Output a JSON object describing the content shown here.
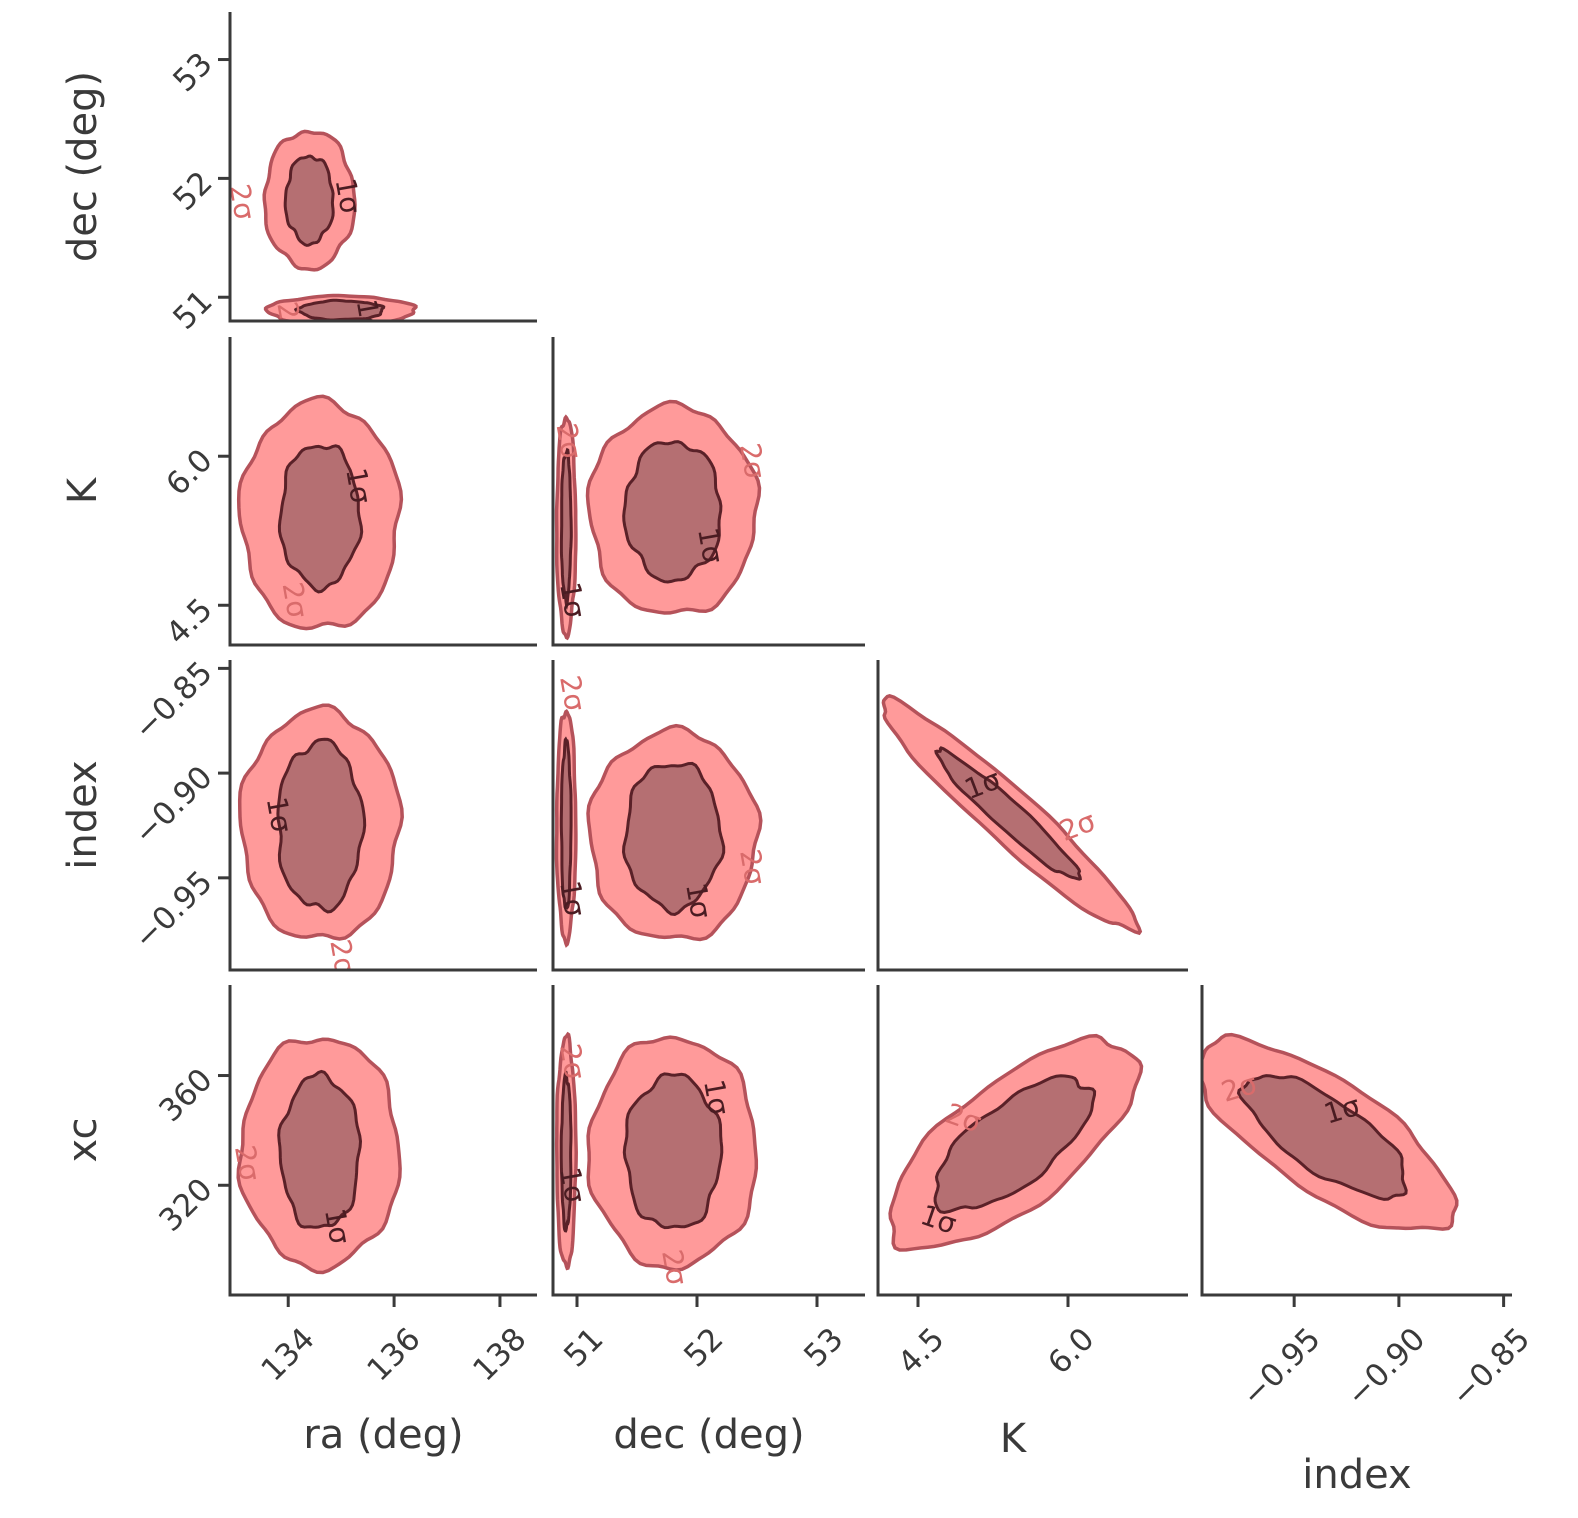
{
  "chart_data": {
    "type": "corner",
    "parameters": [
      {
        "id": "ra",
        "label": "ra (deg)",
        "range": [
          132.9,
          138.7
        ],
        "ticks": [
          "134",
          "136",
          "138"
        ],
        "tick_values": [
          134,
          136,
          138
        ]
      },
      {
        "id": "dec",
        "label": "dec (deg)",
        "range": [
          50.8,
          53.4
        ],
        "ticks": [
          "51",
          "52",
          "53"
        ],
        "tick_values": [
          51,
          52,
          53
        ]
      },
      {
        "id": "K",
        "label": "K",
        "range": [
          4.1,
          7.2
        ],
        "ticks": [
          "4.5",
          "6.0"
        ],
        "tick_values": [
          4.5,
          6.0
        ]
      },
      {
        "id": "index",
        "label": "index",
        "range": [
          -0.994,
          -0.846
        ],
        "ticks": [
          "−0.95",
          "−0.90",
          "−0.85"
        ],
        "tick_values": [
          -0.95,
          -0.9,
          -0.85
        ]
      },
      {
        "id": "xc",
        "label": "xc",
        "range": [
          280,
          393
        ],
        "ticks": [
          "360",
          "320"
        ],
        "tick_values": [
          360,
          320
        ]
      }
    ],
    "contour_levels": [
      "1σ",
      "2σ"
    ],
    "colors": {
      "outer_fill": "#ff9a9a",
      "outer_edge": "#b5525a",
      "inner_fill": "#b56f72",
      "inner_edge": "#5a2128",
      "axis": "#3a3a3a"
    },
    "panels": [
      {
        "x": "ra",
        "y": "dec",
        "blobs": [
          {
            "center": [
              134.4,
              51.82
            ],
            "sigma2": [
              0.85,
              0.58
            ],
            "sigma1": [
              0.45,
              0.37
            ],
            "rot": 0,
            "labels_2": [
              [
                133.1,
                51.8
              ]
            ],
            "labels_1": [
              [
                135.1,
                51.85
              ]
            ]
          },
          {
            "center": [
              135.0,
              50.89
            ],
            "sigma2": [
              1.4,
              0.12
            ],
            "sigma1": [
              0.8,
              0.08
            ],
            "rot": 0,
            "labels_2": [
              [
                134.0,
                50.81
              ]
            ],
            "labels_1": [
              [
                135.5,
                50.83
              ]
            ]
          }
        ]
      },
      {
        "x": "ra",
        "y": "K",
        "blobs": [
          {
            "center": [
              134.6,
              5.4
            ],
            "sigma2": [
              1.5,
              1.15
            ],
            "sigma1": [
              0.75,
              0.72
            ],
            "rot": 0,
            "labels_2": [
              [
                134.1,
                4.55
              ]
            ],
            "labels_1": [
              [
                135.3,
                5.7
              ]
            ]
          }
        ]
      },
      {
        "x": "dec",
        "y": "K",
        "blobs": [
          {
            "center": [
              50.91,
              5.3
            ],
            "sigma2": [
              0.08,
              1.1
            ],
            "sigma1": [
              0.04,
              0.75
            ],
            "rot": 0,
            "labels_2": [
              [
                50.92,
                6.15
              ]
            ],
            "labels_1": [
              [
                50.95,
                4.55
              ]
            ]
          },
          {
            "center": [
              51.8,
              5.45
            ],
            "sigma2": [
              0.7,
              1.05
            ],
            "sigma1": [
              0.4,
              0.7
            ],
            "rot": 0,
            "labels_2": [
              [
                52.45,
                5.95
              ]
            ],
            "labels_1": [
              [
                52.1,
                5.1
              ]
            ]
          }
        ]
      },
      {
        "x": "ra",
        "y": "index",
        "blobs": [
          {
            "center": [
              134.6,
              -0.925
            ],
            "sigma2": [
              1.5,
              0.055
            ],
            "sigma1": [
              0.8,
              0.04
            ],
            "rot": 0,
            "labels_2": [
              [
                135.0,
                -0.988
              ]
            ],
            "labels_1": [
              [
                133.8,
                -0.92
              ]
            ]
          }
        ]
      },
      {
        "x": "dec",
        "y": "index",
        "blobs": [
          {
            "center": [
              50.91,
              -0.925
            ],
            "sigma2": [
              0.08,
              0.055
            ],
            "sigma1": [
              0.04,
              0.04
            ],
            "rot": 0,
            "labels_2": [
              [
                50.95,
                -0.862
              ]
            ],
            "labels_1": [
              [
                50.95,
                -0.96
              ]
            ]
          },
          {
            "center": [
              51.8,
              -0.93
            ],
            "sigma2": [
              0.7,
              0.05
            ],
            "sigma1": [
              0.4,
              0.035
            ],
            "rot": 0,
            "labels_2": [
              [
                52.45,
                -0.945
              ]
            ],
            "labels_1": [
              [
                52.0,
                -0.961
              ]
            ]
          }
        ]
      },
      {
        "x": "K",
        "y": "index",
        "blobs": [
          {
            "center": [
              5.4,
              -0.92
            ],
            "sigma2": [
              1.55,
              0.011
            ],
            "sigma1": [
              0.85,
              0.006
            ],
            "rot": -1,
            "labels_2": [
              [
                6.1,
                -0.926
              ]
            ],
            "labels_1": [
              [
                5.15,
                -0.906
              ]
            ]
          }
        ]
      },
      {
        "x": "ra",
        "y": "xc",
        "blobs": [
          {
            "center": [
              134.6,
              332
            ],
            "sigma2": [
              1.5,
              42
            ],
            "sigma1": [
              0.75,
              28
            ],
            "rot": 0,
            "labels_2": [
              [
                133.2,
                328
              ]
            ],
            "labels_1": [
              [
                134.9,
                305
              ]
            ]
          }
        ]
      },
      {
        "x": "dec",
        "y": "xc",
        "blobs": [
          {
            "center": [
              50.91,
              332
            ],
            "sigma2": [
              0.08,
              42
            ],
            "sigma1": [
              0.04,
              28
            ],
            "rot": 0,
            "labels_2": [
              [
                50.95,
                365
              ]
            ],
            "labels_1": [
              [
                50.95,
                320
              ]
            ]
          },
          {
            "center": [
              51.8,
              332
            ],
            "sigma2": [
              0.7,
              42
            ],
            "sigma1": [
              0.4,
              28
            ],
            "rot": 0,
            "labels_2": [
              [
                51.8,
                290
              ]
            ],
            "labels_1": [
              [
                52.15,
                352
              ]
            ]
          }
        ]
      },
      {
        "x": "K",
        "y": "xc",
        "blobs": [
          {
            "center": [
              5.45,
              335
            ],
            "sigma2": [
              1.7,
              10
            ],
            "sigma1": [
              0.95,
              6
            ],
            "rot": 1,
            "labels_2": [
              [
                4.95,
                344
              ]
            ],
            "labels_1": [
              [
                4.7,
                307
              ]
            ]
          }
        ]
      },
      {
        "x": "index",
        "y": "xc",
        "blobs": [
          {
            "center": [
              -0.935,
              338
            ],
            "sigma2": [
              0.08,
              9
            ],
            "sigma1": [
              0.045,
              5.5
            ],
            "rot": -1,
            "labels_2": [
              [
                -0.976,
                355
              ]
            ],
            "labels_1": [
              [
                -0.927,
                347
              ]
            ]
          }
        ]
      }
    ]
  }
}
